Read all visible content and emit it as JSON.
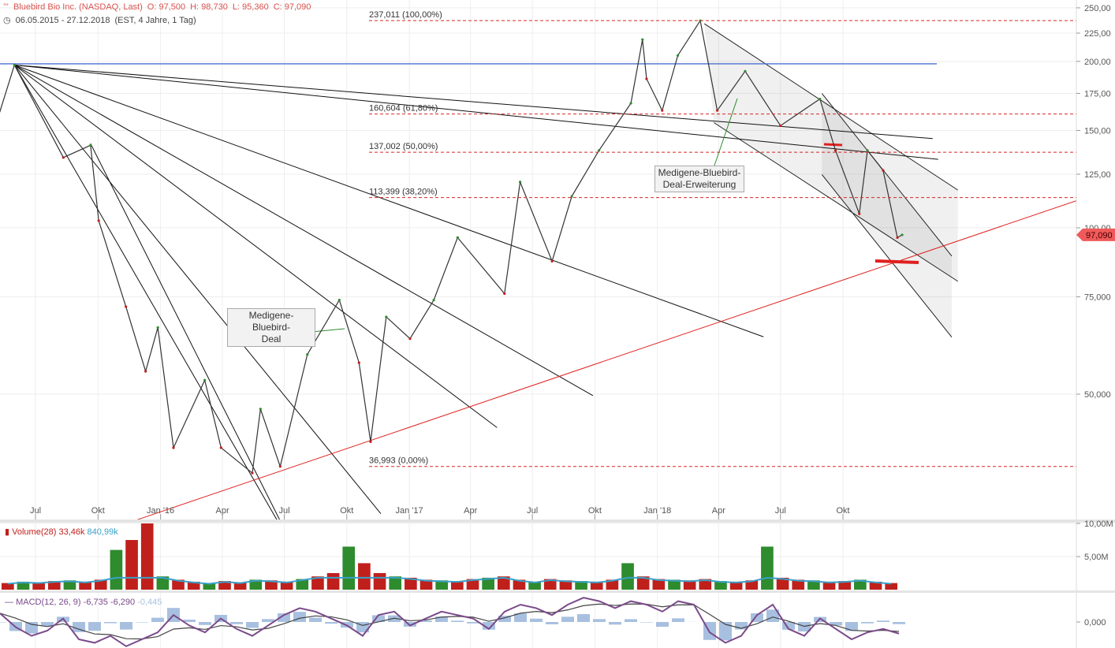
{
  "header": {
    "title": "Bluebird Bio Inc. (NASDAQ, Last)",
    "open": "O: 97,500",
    "high": "H: 98,730",
    "low": "L: 95,360",
    "close": "C: 97,090",
    "range": "06.05.2015 - 27.12.2018",
    "info": "(EST, 4 Jahre, 1 Tag)"
  },
  "volume_label": {
    "name": "Volume(28)",
    "v1": "33,46k",
    "v2": "840,99k"
  },
  "macd_label": {
    "name": "MACD(12, 26, 9)",
    "v1": "-6,735",
    "v2": "-6,290",
    "v3": "-0,445"
  },
  "annotations": [
    {
      "text1": "Medigene-Bluebird-",
      "text2": "Deal"
    },
    {
      "text1": "Medigene-Bluebird-",
      "text2": "Deal-Erweiterung"
    }
  ],
  "colors": {
    "up": "#2e8b2e",
    "down": "#c0201c",
    "fib": "#d62728",
    "trend": "#e02020",
    "blue_line": "#4a6fd0",
    "avg": "#3aa0c8",
    "macd": "#7a4a8a",
    "hist": "#a8c0e0",
    "last_price_bg": "#f05a5a"
  },
  "chart_data": [
    {
      "type": "line",
      "title": "Bluebird Bio Inc. (NASDAQ, Last)",
      "y_scale": "log",
      "ylim": [
        30,
        250
      ],
      "y_ticks": [
        "250,00",
        "225,00",
        "200,00",
        "175,00",
        "150,00",
        "125,00",
        "100,00",
        "75,000",
        "50,000"
      ],
      "y_tick_values": [
        250,
        225,
        200,
        175,
        150,
        125,
        100,
        75,
        50
      ],
      "x_ticks": [
        "Jul",
        "Okt",
        "Jan '16",
        "Apr",
        "Jul",
        "Okt",
        "Jan '17",
        "Apr",
        "Jul",
        "Okt",
        "Jan '18",
        "Apr",
        "Jul",
        "Okt"
      ],
      "x_tick_dates": [
        "2015-07-01",
        "2015-10-01",
        "2016-01-01",
        "2016-04-01",
        "2016-07-01",
        "2016-10-01",
        "2017-01-01",
        "2017-04-01",
        "2017-07-01",
        "2017-10-01",
        "2018-01-01",
        "2018-04-01",
        "2018-07-01",
        "2018-10-01"
      ],
      "grid": true,
      "last_price": 97.09,
      "last_price_label": "97,090",
      "series": [
        {
          "points": [
            [
              "2015-05-06",
              157
            ],
            [
              "2015-05-31",
              197
            ],
            [
              "2015-08-11",
              134
            ],
            [
              "2015-09-20",
              141
            ],
            [
              "2015-10-02",
              103
            ],
            [
              "2015-11-11",
              72
            ],
            [
              "2015-12-10",
              55
            ],
            [
              "2015-12-28",
              66
            ],
            [
              "2016-01-20",
              40
            ],
            [
              "2016-03-06",
              53
            ],
            [
              "2016-03-30",
              40
            ],
            [
              "2016-05-15",
              36
            ],
            [
              "2016-05-27",
              47
            ],
            [
              "2016-06-25",
              37
            ],
            [
              "2016-08-04",
              59
            ],
            [
              "2016-09-20",
              74
            ],
            [
              "2016-10-19",
              57
            ],
            [
              "2016-11-05",
              41
            ],
            [
              "2016-11-28",
              69
            ],
            [
              "2017-01-02",
              63
            ],
            [
              "2017-02-06",
              74
            ],
            [
              "2017-03-13",
              96
            ],
            [
              "2017-05-21",
              76
            ],
            [
              "2017-06-13",
              121
            ],
            [
              "2017-07-30",
              87
            ],
            [
              "2017-08-28",
              114
            ],
            [
              "2017-10-07",
              138
            ],
            [
              "2017-11-23",
              168
            ],
            [
              "2017-12-10",
              219
            ],
            [
              "2017-12-16",
              186
            ],
            [
              "2018-01-08",
              163
            ],
            [
              "2018-01-31",
              205
            ],
            [
              "2018-03-05",
              237
            ],
            [
              "2018-03-30",
              163
            ],
            [
              "2018-05-10",
              192
            ],
            [
              "2018-07-01",
              153
            ],
            [
              "2018-08-28",
              171
            ],
            [
              "2018-09-20",
              138
            ],
            [
              "2018-10-25",
              106
            ],
            [
              "2018-11-06",
              138
            ],
            [
              "2018-11-29",
              127
            ],
            [
              "2018-12-20",
              96
            ],
            [
              "2018-12-27",
              97.09
            ]
          ]
        }
      ],
      "fib_levels": [
        {
          "value": 237.011,
          "label": "237,011 (100,00%)"
        },
        {
          "value": 160.604,
          "label": "160,604 (61,80%)"
        },
        {
          "value": 137.002,
          "label": "137,002 (50,00%)"
        },
        {
          "value": 113.399,
          "label": "113,399 (38,20%)"
        },
        {
          "value": 36.993,
          "label": "36,993 (0,00%)"
        }
      ],
      "horizontal_line": 198,
      "fan_lines": [
        [
          [
            "2015-05-31",
            197
          ],
          [
            "2019-02-10",
            145
          ]
        ],
        [
          [
            "2015-05-31",
            197
          ],
          [
            "2019-02-18",
            133
          ]
        ],
        [
          [
            "2015-05-31",
            197
          ],
          [
            "2018-06-06",
            63.5
          ]
        ],
        [
          [
            "2015-05-31",
            197
          ],
          [
            "2017-09-28",
            49.7
          ]
        ],
        [
          [
            "2015-05-31",
            197
          ],
          [
            "2017-05-10",
            43.5
          ]
        ],
        [
          [
            "2015-05-31",
            197
          ],
          [
            "2016-11-20",
            30.4
          ]
        ],
        [
          [
            "2015-05-31",
            197
          ],
          [
            "2016-06-21",
            29.5
          ]
        ],
        [
          [
            "2015-09-20",
            142
          ],
          [
            "2016-06-25",
            29.5
          ]
        ]
      ],
      "support_line": [
        [
          "2015-11-23",
          29.5
        ],
        [
          "2019-09-10",
          112
        ]
      ],
      "channels": [
        {
          "upper": [
            [
              "2018-03-11",
              234
            ],
            [
              "2019-03-19",
              117
            ]
          ],
          "lower": [
            [
              "2018-03-25",
              155
            ],
            [
              "2019-03-19",
              80
            ]
          ]
        },
        {
          "upper": [
            [
              "2018-08-31",
              175
            ],
            [
              "2019-03-10",
              88.9
            ]
          ],
          "lower": [
            [
              "2018-08-31",
              124.8
            ],
            [
              "2019-03-10",
              63.4
            ]
          ]
        }
      ]
    },
    {
      "type": "bar",
      "title": "Volume(28)",
      "y_ticks": [
        "10,00M",
        "5,00M"
      ],
      "y_tick_values": [
        10,
        5
      ],
      "values_m": [
        1.0,
        1.2,
        1.1,
        1.3,
        1.4,
        1.2,
        1.5,
        6.0,
        7.5,
        10.0,
        2.0,
        1.5,
        1.2,
        1.0,
        1.3,
        1.1,
        1.5,
        1.4,
        1.2,
        1.6,
        2.0,
        2.5,
        6.5,
        4.0,
        2.5,
        2.0,
        1.8,
        1.5,
        1.4,
        1.3,
        1.6,
        1.8,
        2.0,
        1.5,
        1.2,
        1.6,
        1.4,
        1.3,
        1.2,
        1.5,
        4.0,
        2.0,
        1.6,
        1.5,
        1.4,
        1.6,
        1.3,
        1.2,
        1.4,
        6.5,
        1.8,
        1.5,
        1.4,
        1.2,
        1.3,
        1.5,
        1.2,
        1.0
      ]
    },
    {
      "type": "line",
      "title": "MACD(12, 26, 9)",
      "y_ticks": [
        "0,000"
      ],
      "y_tick_values": [
        0
      ],
      "values": [
        5,
        -3,
        -8,
        -5,
        2,
        -10,
        -12,
        -8,
        -14,
        -10,
        -6,
        4,
        -2,
        -6,
        2,
        -4,
        -8,
        -2,
        4,
        8,
        6,
        2,
        -2,
        -8,
        4,
        6,
        -2,
        2,
        6,
        4,
        2,
        -4,
        6,
        10,
        8,
        4,
        10,
        14,
        12,
        8,
        12,
        10,
        6,
        12,
        10,
        -6,
        -12,
        -8,
        4,
        10,
        -4,
        -8,
        2,
        -4,
        -10,
        -6,
        -4,
        -6.7
      ]
    }
  ]
}
